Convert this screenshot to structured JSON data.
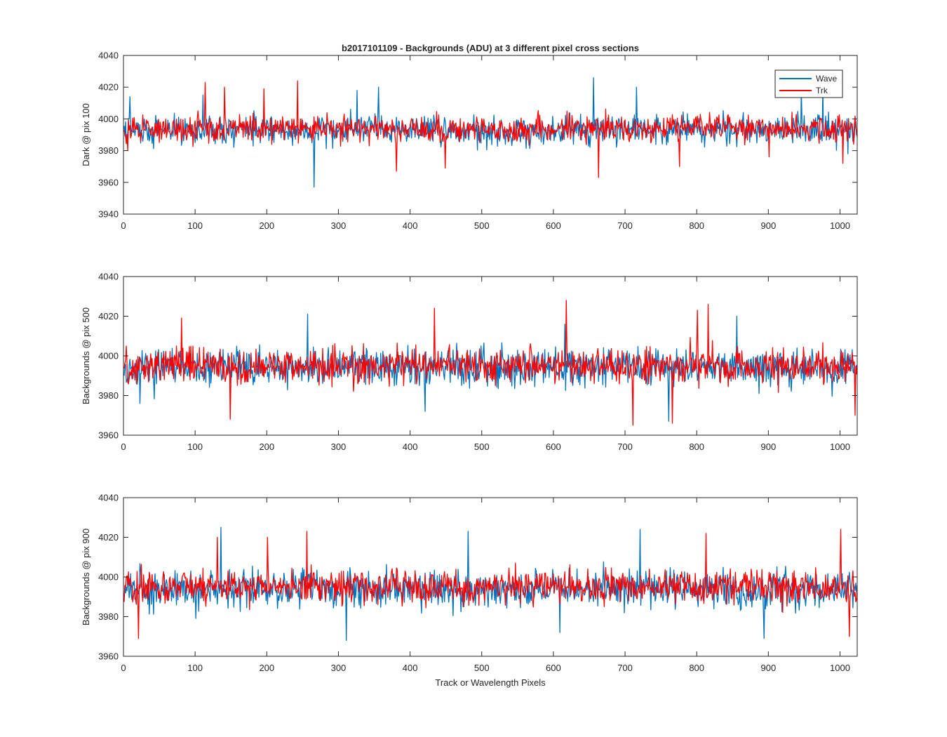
{
  "figure": {
    "title": "b2017101109 - Backgrounds (ADU) at 3 different pixel cross sections",
    "xlabel": "Track or Wavelength Pixels"
  },
  "legend": {
    "placement": "top-right",
    "entries": [
      {
        "name": "Wave",
        "color": "#0072BD"
      },
      {
        "name": "Trk",
        "color": "#FF0000"
      }
    ]
  },
  "chart_data": [
    {
      "type": "line",
      "ylabel": "Dark @ pix 100",
      "xlim": [
        0,
        1024
      ],
      "ylim": [
        3940,
        4040
      ],
      "xticks": [
        0,
        100,
        200,
        300,
        400,
        500,
        600,
        700,
        800,
        900,
        1000
      ],
      "yticks": [
        3940,
        3960,
        3980,
        4000,
        4020,
        4040
      ],
      "n_points": 1024,
      "series": [
        {
          "name": "Wave",
          "color": "#0072BD",
          "mean": 3993,
          "spread": 8.5,
          "spikes": [
            [
              8,
              4014
            ],
            [
              110,
              4015
            ],
            [
              265,
              3957
            ],
            [
              325,
              4018
            ],
            [
              355,
              4020
            ],
            [
              655,
              4026
            ],
            [
              715,
              4020
            ],
            [
              945,
              4018
            ],
            [
              975,
              4020
            ],
            [
              1010,
              3978
            ]
          ]
        },
        {
          "name": "Trk",
          "color": "#FF0000",
          "mean": 3994,
          "spread": 7.5,
          "spikes": [
            [
              5,
              3980
            ],
            [
              113,
              4023
            ],
            [
              140,
              4020
            ],
            [
              195,
              4019
            ],
            [
              242,
              4024
            ],
            [
              380,
              3967
            ],
            [
              448,
              3969
            ],
            [
              662,
              3963
            ],
            [
              775,
              3970
            ],
            [
              900,
              3976
            ],
            [
              1003,
              3972
            ]
          ]
        }
      ]
    },
    {
      "type": "line",
      "ylabel": "Backgrounds @ pix 500",
      "xlim": [
        0,
        1024
      ],
      "ylim": [
        3960,
        4040
      ],
      "xticks": [
        0,
        100,
        200,
        300,
        400,
        500,
        600,
        700,
        800,
        900,
        1000
      ],
      "yticks": [
        3960,
        3980,
        4000,
        4020,
        4040
      ],
      "n_points": 1024,
      "series": [
        {
          "name": "Wave",
          "color": "#0072BD",
          "mean": 3994,
          "spread": 8.5,
          "spikes": [
            [
              22,
              3976
            ],
            [
              256,
              4021
            ],
            [
              420,
              3972
            ],
            [
              615,
              4016
            ],
            [
              760,
              3967
            ],
            [
              855,
              4020
            ],
            [
              1020,
              3978
            ]
          ]
        },
        {
          "name": "Trk",
          "color": "#FF0000",
          "mean": 3995,
          "spread": 8.0,
          "spikes": [
            [
              80,
              4019
            ],
            [
              148,
              3968
            ],
            [
              433,
              4024
            ],
            [
              617,
              4028
            ],
            [
              710,
              3965
            ],
            [
              765,
              3966
            ],
            [
              800,
              4023
            ],
            [
              815,
              4026
            ],
            [
              1020,
              3970
            ]
          ]
        }
      ]
    },
    {
      "type": "line",
      "ylabel": "Backgrounds @ pix 900",
      "xlim": [
        0,
        1024
      ],
      "ylim": [
        3960,
        4040
      ],
      "xticks": [
        0,
        100,
        200,
        300,
        400,
        500,
        600,
        700,
        800,
        900,
        1000
      ],
      "yticks": [
        3960,
        3980,
        4000,
        4020,
        4040
      ],
      "n_points": 1024,
      "series": [
        {
          "name": "Wave",
          "color": "#0072BD",
          "mean": 3994,
          "spread": 8.5,
          "spikes": [
            [
              135,
              4025
            ],
            [
              310,
              3968
            ],
            [
              480,
              4023
            ],
            [
              608,
              3972
            ],
            [
              720,
              4024
            ],
            [
              893,
              3969
            ]
          ]
        },
        {
          "name": "Trk",
          "color": "#FF0000",
          "mean": 3995,
          "spread": 8.0,
          "spikes": [
            [
              20,
              3969
            ],
            [
              130,
              4020
            ],
            [
              200,
              4020
            ],
            [
              255,
              4023
            ],
            [
              812,
              4022
            ],
            [
              1000,
              4024
            ],
            [
              1012,
              3970
            ]
          ]
        }
      ]
    }
  ]
}
